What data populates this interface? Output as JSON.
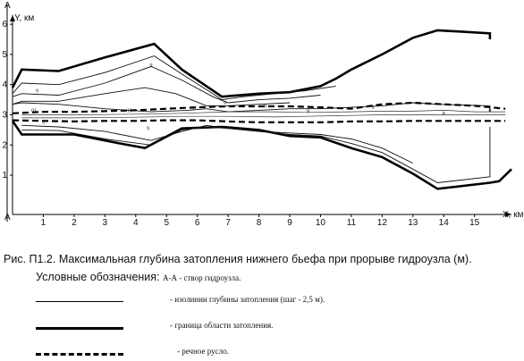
{
  "chart_data": {
    "type": "line",
    "xlabel": "X, км",
    "ylabel": "Y, км",
    "section_label": "А",
    "xlim": [
      0,
      16.2
    ],
    "ylim": [
      -0.3,
      6.3
    ],
    "x_ticks": [
      "1",
      "2",
      "3",
      "4",
      "5",
      "6",
      "7",
      "8",
      "9",
      "10",
      "11",
      "12",
      "13",
      "14",
      "15"
    ],
    "y_ticks": [
      "1",
      "2",
      "3",
      "4",
      "5",
      "6"
    ],
    "series": [
      {
        "name": "граница области затопления",
        "style": "boundary",
        "x": [
          0,
          0.3,
          1.5,
          3,
          4.6,
          5.5,
          6.8,
          8,
          9,
          10,
          10.5,
          11,
          12,
          13,
          13.8,
          15.5,
          15.5
        ],
        "y": [
          3.9,
          4.5,
          4.45,
          4.9,
          5.35,
          4.5,
          3.6,
          3.7,
          3.75,
          3.95,
          4.2,
          4.5,
          5,
          5.55,
          5.8,
          5.7,
          5.5
        ]
      },
      {
        "name": "граница области затопления",
        "style": "boundary",
        "x": [
          0,
          0.3,
          2,
          3.5,
          4.3,
          5.5,
          6.8,
          8,
          9,
          10,
          11,
          12,
          13,
          13.8,
          15.5,
          15.8,
          16.2
        ],
        "y": [
          2.8,
          2.35,
          2.35,
          2.05,
          1.9,
          2.55,
          2.6,
          2.5,
          2.3,
          2.25,
          1.9,
          1.6,
          1.05,
          0.55,
          0.75,
          0.8,
          1.2
        ]
      },
      {
        "name": "изолинии глубины затопления",
        "style": "isoline",
        "x": [
          0,
          0.3,
          1.5,
          3,
          4.6,
          5.5,
          6.5,
          6.8,
          7.5,
          8.5,
          9.5,
          10.5
        ],
        "y": [
          3.7,
          4.05,
          4.0,
          4.4,
          4.95,
          4.35,
          3.7,
          3.5,
          3.6,
          3.7,
          3.8,
          3.95
        ]
      },
      {
        "name": "изолинии глубины затопления",
        "style": "isoline",
        "x": [
          0,
          0.3,
          1.5,
          3,
          4.5,
          5.5,
          6.5,
          7,
          8,
          9,
          10
        ],
        "y": [
          3.6,
          3.7,
          3.65,
          4.05,
          4.6,
          4.15,
          3.6,
          3.4,
          3.5,
          3.55,
          3.65
        ]
      },
      {
        "name": "изолинии глубины затопления",
        "style": "isoline",
        "x": [
          0,
          0.3,
          1.5,
          3,
          4.3,
          5.3,
          6.3,
          7,
          8,
          9
        ],
        "y": [
          3.35,
          3.45,
          3.45,
          3.7,
          3.9,
          3.7,
          3.3,
          3.3,
          3.35,
          3.4
        ]
      },
      {
        "name": "изолинии глубины затопления",
        "style": "isoline",
        "x": [
          0,
          0.3,
          1.5,
          3,
          4.5,
          5.7,
          6.3,
          7,
          8,
          9,
          10,
          11,
          12,
          13,
          13.8,
          15.5,
          15.5
        ],
        "y": [
          3.35,
          3.4,
          3.35,
          3.2,
          3.1,
          3.15,
          3.2,
          3.1,
          3.15,
          3.2,
          3.2,
          3.25,
          3.3,
          3.4,
          3.35,
          3.3,
          3.1
        ]
      },
      {
        "name": "изолинии глубины затопления",
        "style": "isoline",
        "x": [
          0.3,
          1.5,
          3,
          4.5,
          5.5,
          6.3,
          7,
          8,
          9,
          10,
          11,
          12,
          13
        ],
        "y": [
          2.65,
          2.6,
          2.45,
          2.15,
          2.45,
          2.65,
          2.55,
          2.45,
          2.4,
          2.35,
          2.2,
          1.9,
          1.4
        ]
      },
      {
        "name": "изолинии глубины затопления",
        "style": "isoline",
        "x": [
          0.3,
          1.5,
          3,
          4.5,
          5.5,
          6.3,
          7,
          8,
          9,
          10,
          11,
          12,
          13,
          13.8,
          15.5,
          15.5
        ],
        "y": [
          2.5,
          2.48,
          2.2,
          2.0,
          2.5,
          2.6,
          2.55,
          2.45,
          2.35,
          2.3,
          2.05,
          1.75,
          1.2,
          0.75,
          0.95,
          2.6
        ]
      },
      {
        "name": "речное русло",
        "style": "river",
        "x": [
          0,
          1,
          2,
          3,
          4,
          5,
          6,
          7,
          8,
          9,
          10,
          11,
          12,
          13,
          14,
          15,
          16
        ],
        "y": [
          3.05,
          3.1,
          3.1,
          3.12,
          3.15,
          3.2,
          3.25,
          3.28,
          3.28,
          3.28,
          3.25,
          3.2,
          3.35,
          3.4,
          3.35,
          3.3,
          3.2
        ]
      },
      {
        "name": "речное русло",
        "style": "river",
        "x": [
          0,
          1,
          2,
          3,
          4,
          5,
          6,
          7,
          8,
          9,
          10,
          11,
          12,
          13,
          14,
          15,
          16
        ],
        "y": [
          2.82,
          2.8,
          2.78,
          2.8,
          2.8,
          2.82,
          2.82,
          2.78,
          2.75,
          2.75,
          2.75,
          2.78,
          2.78,
          2.8,
          2.8,
          2.8,
          2.8
        ]
      },
      {
        "name": "изолинии глубины затопления",
        "style": "thin",
        "x": [
          0.3,
          2,
          4,
          5.5,
          7,
          8.5,
          9.5,
          11,
          12,
          13,
          14,
          15,
          16
        ],
        "y": [
          2.9,
          2.9,
          2.92,
          2.95,
          2.95,
          2.93,
          2.95,
          2.98,
          3.0,
          3.0,
          3.0,
          3.0,
          3.0
        ]
      },
      {
        "name": "изолинии глубины затопления",
        "style": "thin",
        "x": [
          0.3,
          2,
          4,
          5.5,
          7,
          8.5,
          9.5,
          11,
          12,
          13,
          14,
          15,
          16
        ],
        "y": [
          3.0,
          3.0,
          3.02,
          3.05,
          3.1,
          3.1,
          3.08,
          3.1,
          3.12,
          3.12,
          3.15,
          3.1,
          3.1
        ]
      }
    ],
    "contour_labels": [
      {
        "text": "9",
        "x": 0.8,
        "y": 3.8
      },
      {
        "text": "9",
        "x": 4.5,
        "y": 4.65
      },
      {
        "text": "9",
        "x": 6.9,
        "y": 3.4
      },
      {
        "text": "9",
        "x": 8.2,
        "y": 3.3
      },
      {
        "text": "9",
        "x": 11.7,
        "y": 3.25
      },
      {
        "text": "01",
        "x": 0.7,
        "y": 3.15
      },
      {
        "text": "10",
        "x": 3.8,
        "y": 3.15
      },
      {
        "text": "01",
        "x": 5.9,
        "y": 3.22
      },
      {
        "text": "5",
        "x": 1.0,
        "y": 2.75
      },
      {
        "text": "9",
        "x": 4.4,
        "y": 2.55
      },
      {
        "text": "9",
        "x": 9.6,
        "y": 3.12
      },
      {
        "text": "8",
        "x": 14.0,
        "y": 3.05
      },
      {
        "text": "8",
        "x": 15.5,
        "y": 3.15
      }
    ]
  },
  "caption": "Рис. П1.2. Максимальная глубина затопления нижнего бьефа при прорыве гидроузла (м).",
  "legend_title": "Условные обозначения:",
  "legend_note": "А-А - створ гидроузла.",
  "legend": {
    "isolines": "- изолинии глубины затопления (шаг - 2,5 м).",
    "boundary": "- граница области затопления.",
    "river": "- речное русло."
  }
}
